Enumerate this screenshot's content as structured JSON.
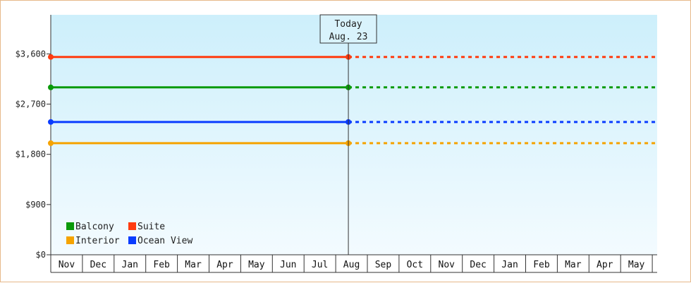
{
  "chart_data": {
    "type": "line",
    "y_ticks": [
      "$0",
      "$900",
      "$1,800",
      "$2,700",
      "$3,600"
    ],
    "y_tick_values": [
      0,
      900,
      1800,
      2700,
      3600
    ],
    "ylim": [
      0,
      4300
    ],
    "x": [
      "Nov",
      "Dec",
      "Jan",
      "Feb",
      "Mar",
      "Apr",
      "May",
      "Jun",
      "Jul",
      "Aug",
      "Sep",
      "Oct",
      "Nov",
      "Dec",
      "Jan",
      "Feb",
      "Mar",
      "Apr",
      "May"
    ],
    "today_index": 9.4,
    "today": {
      "line1": "Today",
      "line2": "Aug. 23"
    },
    "series": [
      {
        "name": "Suite",
        "color": "#ff3b0f",
        "value": 3545
      },
      {
        "name": "Balcony",
        "color": "#0a9a0a",
        "value": 3000
      },
      {
        "name": "Ocean View",
        "color": "#0a3cff",
        "value": 2380
      },
      {
        "name": "Interior",
        "color": "#f5a300",
        "value": 2000
      }
    ],
    "legend_position": "bottom-left",
    "legend_order": [
      "Balcony",
      "Suite",
      "Interior",
      "Ocean View"
    ],
    "grid": false,
    "background": {
      "top": "#cdeffb",
      "bottom": "#f3fbff"
    },
    "axis_color": "#333333"
  }
}
